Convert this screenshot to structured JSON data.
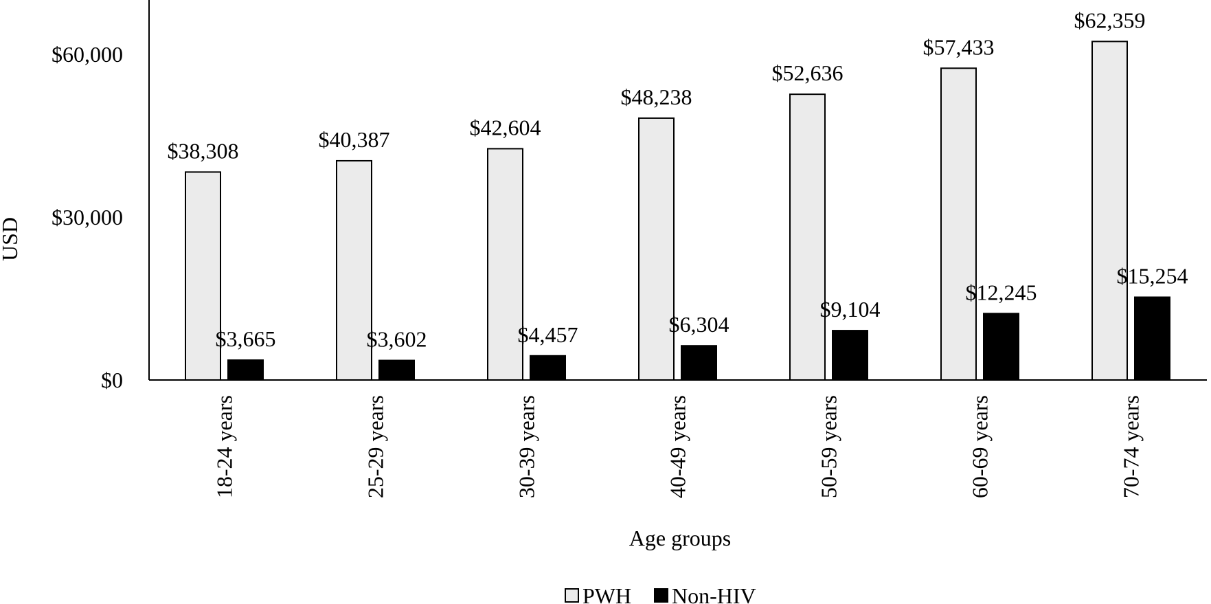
{
  "chart_data": {
    "type": "bar",
    "categories": [
      "18-24 years",
      "25-29 years",
      "30-39 years",
      "40-49 years",
      "50-59 years",
      "60-69 years",
      "70-74 years"
    ],
    "series": [
      {
        "name": "PWH",
        "values": [
          38308,
          40387,
          42604,
          48238,
          52636,
          57433,
          62359
        ],
        "labels": [
          "$38,308",
          "$40,387",
          "$42,604",
          "$48,238",
          "$52,636",
          "$57,433",
          "$62,359"
        ],
        "color": "#ebebeb",
        "stroke": "#000000"
      },
      {
        "name": "Non-HIV",
        "values": [
          3665,
          3602,
          4457,
          6304,
          9104,
          12245,
          15254
        ],
        "labels": [
          "$3,665",
          "$3,602",
          "$4,457",
          "$6,304",
          "$9,104",
          "$12,245",
          "$15,254"
        ],
        "color": "#000000",
        "stroke": "#000000"
      }
    ],
    "xlabel": "Age groups",
    "ylabel": "USD",
    "ylim": [
      0,
      70000
    ],
    "yticks": [
      0,
      30000,
      60000
    ],
    "ytick_labels": [
      "$0",
      "$30,000",
      "$60,000"
    ],
    "grid": false,
    "legend_position": "bottom-center"
  }
}
